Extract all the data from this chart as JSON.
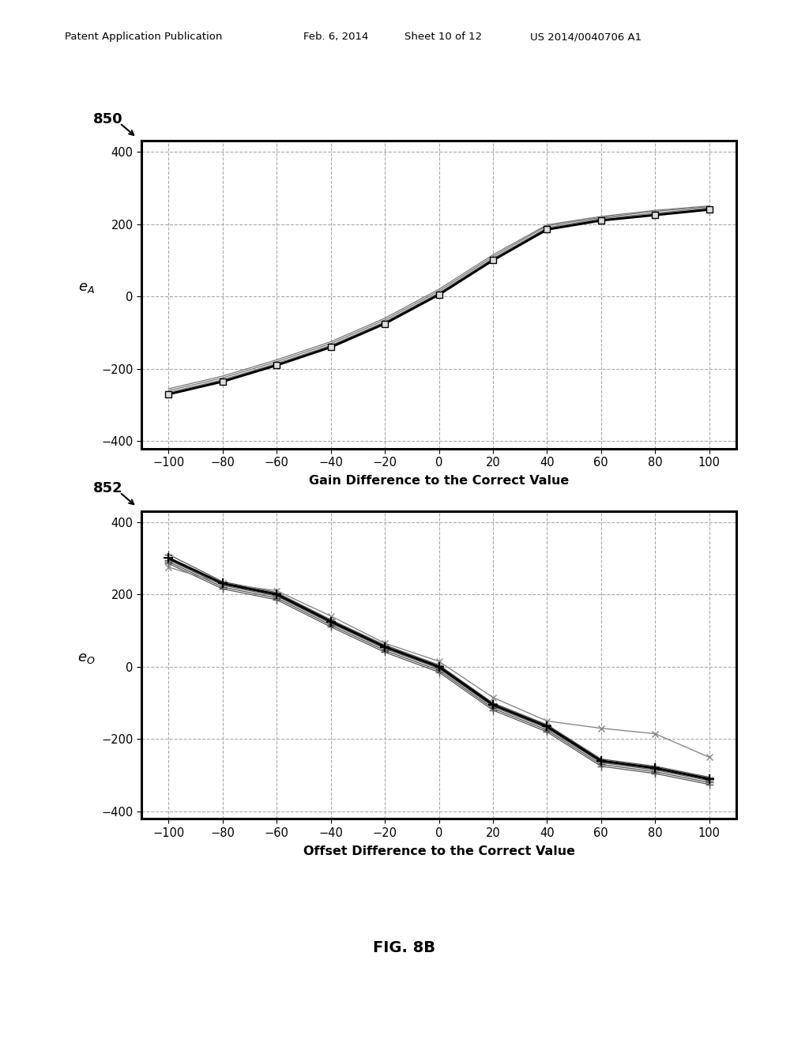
{
  "fig_width": 10.24,
  "fig_height": 13.2,
  "background_color": "#ffffff",
  "plot1": {
    "label_id": "850",
    "xlabel": "Gain Difference to the Correct Value",
    "ylabel": "e_A",
    "xlim": [
      -110,
      110
    ],
    "ylim": [
      -420,
      430
    ],
    "xticks": [
      -100,
      -80,
      -60,
      -40,
      -20,
      0,
      20,
      40,
      60,
      80,
      100
    ],
    "yticks": [
      -400,
      -200,
      0,
      200,
      400
    ],
    "x": [
      -100,
      -80,
      -60,
      -40,
      -20,
      0,
      20,
      40,
      60,
      80,
      100
    ],
    "main_series": [
      -270,
      -235,
      -190,
      -140,
      -75,
      5,
      100,
      185,
      210,
      225,
      240
    ],
    "extra_series": [
      [
        -265,
        -230,
        -185,
        -135,
        -70,
        10,
        105,
        190,
        215,
        230,
        245
      ],
      [
        -260,
        -225,
        -180,
        -130,
        -65,
        15,
        110,
        195,
        218,
        235,
        248
      ],
      [
        -255,
        -220,
        -175,
        -125,
        -60,
        20,
        115,
        198,
        221,
        238,
        250
      ]
    ]
  },
  "plot2": {
    "label_id": "852",
    "xlabel": "Offset Difference to the Correct Value",
    "ylabel": "e_O",
    "xlim": [
      -110,
      110
    ],
    "ylim": [
      -420,
      430
    ],
    "xticks": [
      -100,
      -80,
      -60,
      -40,
      -20,
      0,
      20,
      40,
      60,
      80,
      100
    ],
    "yticks": [
      -400,
      -200,
      0,
      200,
      400
    ],
    "x": [
      -100,
      -80,
      -60,
      -40,
      -20,
      0,
      20,
      40,
      60,
      80,
      100
    ],
    "main_series": [
      300,
      230,
      200,
      125,
      55,
      0,
      -105,
      -165,
      -260,
      -280,
      -310
    ],
    "extra_series": [
      [
        310,
        235,
        205,
        130,
        60,
        5,
        -100,
        -160,
        -255,
        -275,
        -305
      ],
      [
        295,
        225,
        195,
        120,
        50,
        -5,
        -110,
        -170,
        -265,
        -285,
        -315
      ],
      [
        290,
        220,
        190,
        115,
        45,
        -10,
        -115,
        -175,
        -270,
        -290,
        -320
      ],
      [
        285,
        215,
        185,
        110,
        40,
        -15,
        -120,
        -180,
        -275,
        -295,
        -325
      ]
    ],
    "outlier_series": [
      275,
      230,
      210,
      140,
      65,
      15,
      -85,
      -150,
      -170,
      -185,
      -250
    ]
  }
}
